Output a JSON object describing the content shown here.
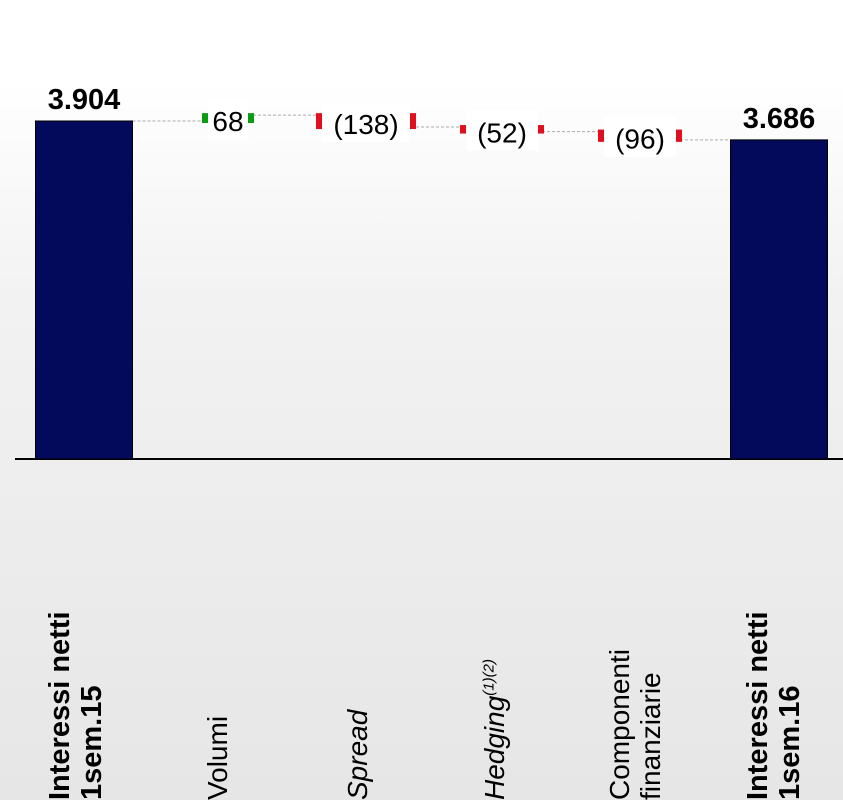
{
  "chart_data": {
    "type": "waterfall",
    "ylim": [
      0,
      3904
    ],
    "bars": [
      {
        "kind": "total",
        "value": 3904,
        "label": "3.904",
        "category": [
          "Interessi netti",
          "1sem.15"
        ],
        "style": "bold"
      },
      {
        "kind": "delta",
        "value": 68,
        "label": "68",
        "category": [
          "Volumi"
        ],
        "style": "normal"
      },
      {
        "kind": "delta",
        "value": -138,
        "label": "(138)",
        "category": [
          "Spread"
        ],
        "style": "italic"
      },
      {
        "kind": "delta",
        "value": -52,
        "label": "(52)",
        "category": [
          "Hedging",
          "(1)(2)"
        ],
        "style": "italic-sup"
      },
      {
        "kind": "delta",
        "value": -96,
        "label": "(96)",
        "category": [
          "Componenti",
          "finanziarie"
        ],
        "style": "normal"
      },
      {
        "kind": "total",
        "value": 3686,
        "label": "3.686",
        "category": [
          "Interessi netti",
          "1sem.16"
        ],
        "style": "bold"
      }
    ]
  },
  "colors": {
    "total": "#030a5c",
    "positive": "#0a9b14",
    "negative": "#e0101e",
    "axis": "#000000",
    "connector": "#aaaaaa"
  }
}
